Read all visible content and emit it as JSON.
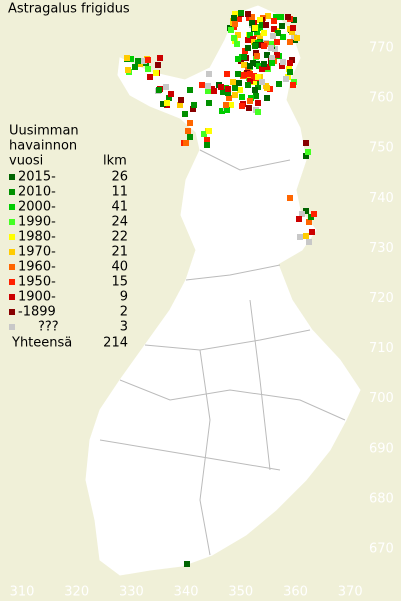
{
  "title": "Astragalus frigidus",
  "legend": {
    "heading": [
      "Uusimman",
      "havainnon",
      "vuosi"
    ],
    "count_heading": "lkm",
    "items": [
      {
        "label": "2015-",
        "count": 26,
        "color": "#006400"
      },
      {
        "label": "2010-",
        "count": 11,
        "color": "#009000"
      },
      {
        "label": "2000-",
        "count": 41,
        "color": "#00cc00"
      },
      {
        "label": "1990-",
        "count": 24,
        "color": "#44ff22"
      },
      {
        "label": "1980-",
        "count": 22,
        "color": "#ffff00"
      },
      {
        "label": "1970-",
        "count": 21,
        "color": "#ffcc00"
      },
      {
        "label": "1960-",
        "count": 40,
        "color": "#ff6600"
      },
      {
        "label": "1950-",
        "count": 15,
        "color": "#ff2000"
      },
      {
        "label": "1900-",
        "count": 9,
        "color": "#cc0000"
      },
      {
        "label": "-1899",
        "count": 2,
        "color": "#880000"
      },
      {
        "label": "???",
        "count": 3,
        "color": "#c8c8c8"
      }
    ],
    "total_label": "Yhteensä",
    "total": 214
  },
  "grid": {
    "north": [
      770,
      760,
      750,
      740,
      730,
      720,
      710,
      700,
      690,
      680,
      670
    ],
    "east": [
      310,
      320,
      330,
      340,
      350,
      360,
      370
    ]
  }
}
